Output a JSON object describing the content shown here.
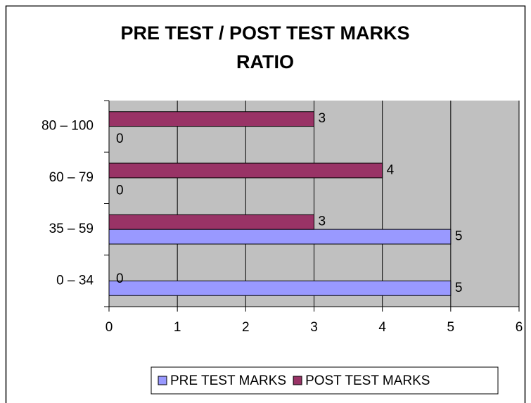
{
  "chart_data": {
    "type": "hbar",
    "title": "PRE TEST / POST TEST MARKS RATIO",
    "categories": [
      "0 – 34",
      "35 – 59",
      "60 – 79",
      "80 – 100"
    ],
    "series": [
      {
        "name": "PRE TEST MARKS",
        "color": "#9999ff",
        "values": [
          5,
          5,
          0,
          0
        ]
      },
      {
        "name": "POST TEST MARKS",
        "color": "#993366",
        "values": [
          0,
          3,
          4,
          3
        ]
      }
    ],
    "xlim": [
      0,
      6
    ],
    "xticks": [
      0,
      1,
      2,
      3,
      4,
      5,
      6
    ],
    "grid": true,
    "legend": "bottom"
  }
}
